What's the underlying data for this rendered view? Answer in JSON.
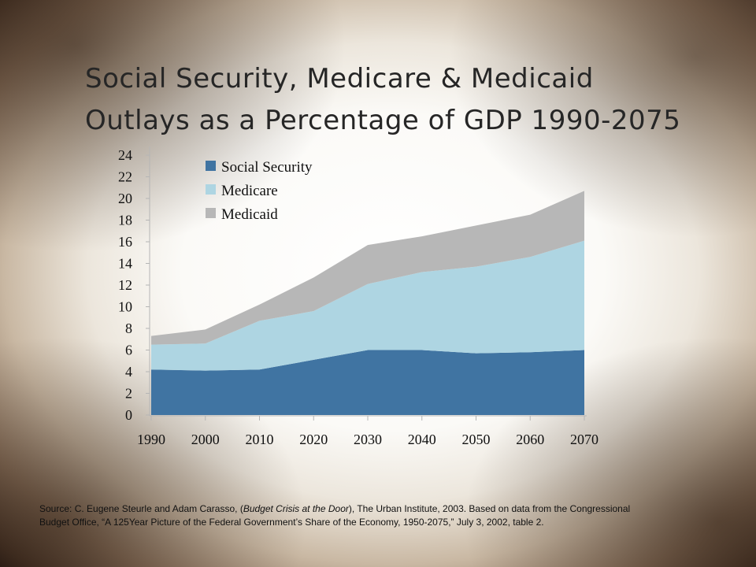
{
  "title_lines": [
    "Social Security, Medicare & Medicaid",
    "Outlays as a Percentage of GDP 1990-2075"
  ],
  "source": {
    "prefix": "Source:  C. Eugene Steurle and Adam Carasso, (",
    "italic": "Budget Crisis at the Door",
    "suffix": "), The Urban Institute, 2003.  Based on data from the Congressional Budget Office, “A 125Year Picture of the Federal Government’s Share of the Economy, 1950-2075,” July 3, 2002, table 2."
  },
  "chart_data": {
    "type": "area",
    "stacked": true,
    "x": [
      1990,
      2000,
      2010,
      2020,
      2030,
      2040,
      2050,
      2060,
      2070
    ],
    "xticks": [
      "1990",
      "2000",
      "2010",
      "2020",
      "2030",
      "2040",
      "2050",
      "2060",
      "2070"
    ],
    "yticks": [
      "0",
      "2",
      "4",
      "6",
      "8",
      "10",
      "12",
      "14",
      "16",
      "18",
      "20",
      "22",
      "24"
    ],
    "ylim": [
      0,
      24
    ],
    "series": [
      {
        "name": "Social Security",
        "color": "#4074a2",
        "values": [
          4.2,
          4.1,
          4.2,
          5.1,
          6.0,
          6.0,
          5.7,
          5.8,
          6.0
        ]
      },
      {
        "name": "Medicare",
        "color": "#aed5e2",
        "values": [
          2.3,
          2.5,
          4.5,
          4.5,
          6.1,
          7.2,
          8.0,
          8.8,
          10.1
        ]
      },
      {
        "name": "Medicaid",
        "color": "#b7b7b7",
        "values": [
          0.8,
          1.3,
          1.5,
          3.1,
          3.6,
          3.3,
          3.8,
          3.9,
          4.6
        ]
      }
    ],
    "legend_position": "top-left",
    "grid": false
  }
}
